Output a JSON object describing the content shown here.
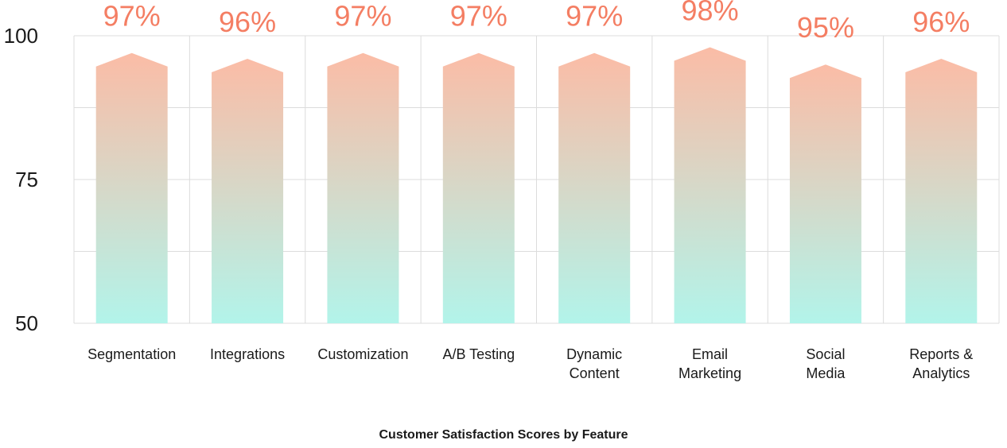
{
  "chart_data": {
    "type": "bar",
    "title": "Customer Satisfaction Scores by Feature",
    "xlabel": "",
    "ylabel": "",
    "ylim": [
      50,
      100
    ],
    "yticks": [
      "50",
      "75",
      "100"
    ],
    "categories": [
      [
        "Segmentation"
      ],
      [
        "Integrations"
      ],
      [
        "Customization"
      ],
      [
        "A/B Testing"
      ],
      [
        "Dynamic",
        "Content"
      ],
      [
        "Email",
        "Marketing"
      ],
      [
        "Social",
        "Media"
      ],
      [
        "Reports &",
        "Analytics"
      ]
    ],
    "values": [
      97,
      96,
      97,
      97,
      97,
      98,
      95,
      96
    ],
    "data_labels": [
      "97%",
      "96%",
      "97%",
      "97%",
      "97%",
      "98%",
      "95%",
      "96%"
    ],
    "grid": true,
    "colors": {
      "bar_top": "#fbbca6",
      "bar_bottom": "#b2f4ea",
      "label": "#f47e63",
      "grid": "#dcdcdc"
    }
  }
}
